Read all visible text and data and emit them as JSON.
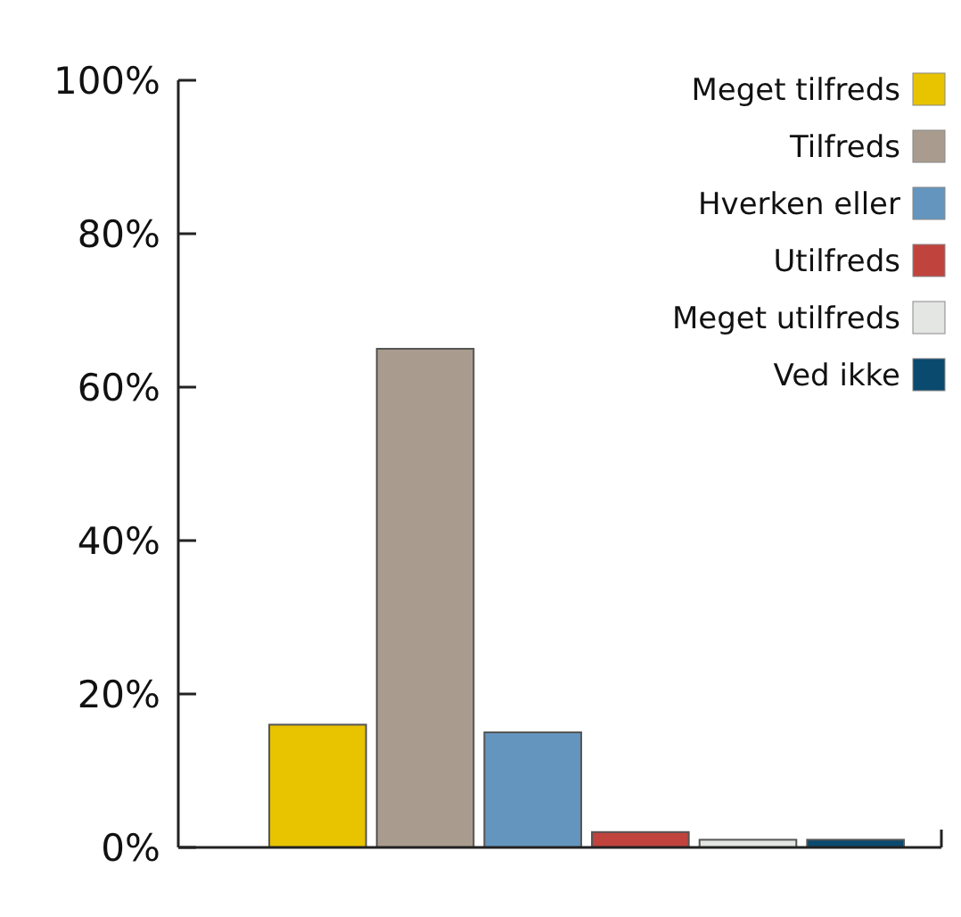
{
  "chart_data": {
    "type": "bar",
    "categories": [
      null,
      null,
      null,
      null,
      null,
      null
    ],
    "stacked": true,
    "series": [
      {
        "name": "Meget tilfreds",
        "color": "#e8c300",
        "values": [
          16,
          null,
          null,
          null,
          null,
          null
        ]
      },
      {
        "name": "Tilfreds",
        "color": "#a99c8e",
        "values": [
          null,
          65,
          null,
          null,
          null,
          null
        ]
      },
      {
        "name": "Hverken eller",
        "color": "#6495bf",
        "values": [
          null,
          null,
          15,
          null,
          null,
          null
        ]
      },
      {
        "name": "Utilfreds",
        "color": "#c0433e",
        "values": [
          null,
          null,
          null,
          2,
          null,
          null
        ]
      },
      {
        "name": "Meget utilfreds",
        "color": "#e3e6e2",
        "values": [
          null,
          null,
          null,
          null,
          1,
          null
        ]
      },
      {
        "name": "Ved ikke",
        "color": "#0b4a6f",
        "values": [
          null,
          null,
          null,
          null,
          null,
          1
        ]
      }
    ],
    "ylim": [
      0,
      100
    ],
    "yticks": [
      {
        "value": 0,
        "label": "0%"
      },
      {
        "value": 20,
        "label": "20%"
      },
      {
        "value": 40,
        "label": "40%"
      },
      {
        "value": 60,
        "label": "60%"
      },
      {
        "value": 80,
        "label": "80%"
      },
      {
        "value": 100,
        "label": "100%"
      }
    ],
    "legend": "top right"
  }
}
